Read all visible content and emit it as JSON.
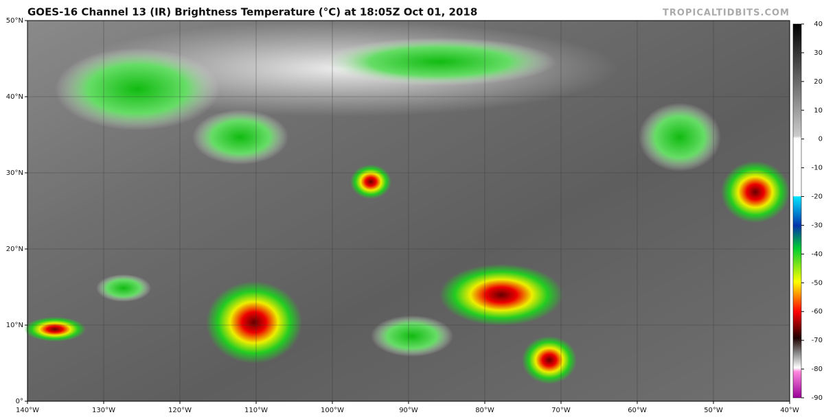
{
  "map": {
    "title": "GOES-16 Channel 13 (IR) Brightness Temperature (°C) at 18:05Z Oct 01, 2018",
    "watermark": "TROPICALTIDBITS.COM",
    "lonlim": [
      -140,
      -40
    ],
    "latlim": [
      0,
      50
    ],
    "lonticks": [
      {
        "value": -140,
        "label": "140°W"
      },
      {
        "value": -130,
        "label": "130°W"
      },
      {
        "value": -120,
        "label": "120°W"
      },
      {
        "value": -110,
        "label": "110°W"
      },
      {
        "value": -100,
        "label": "100°W"
      },
      {
        "value": -90,
        "label": "90°W"
      },
      {
        "value": -80,
        "label": "80°W"
      },
      {
        "value": -70,
        "label": "70°W"
      },
      {
        "value": -60,
        "label": "60°W"
      },
      {
        "value": -50,
        "label": "50°W"
      },
      {
        "value": -40,
        "label": "40°W"
      }
    ],
    "latticks": [
      {
        "value": 0,
        "label": "0°"
      },
      {
        "value": 10,
        "label": "10°N"
      },
      {
        "value": 20,
        "label": "20°N"
      },
      {
        "value": 30,
        "label": "30°N"
      },
      {
        "value": 40,
        "label": "40°N"
      },
      {
        "value": 50,
        "label": "50°N"
      }
    ],
    "colorbar": {
      "lim": [
        -90,
        40
      ],
      "ticks": [
        40,
        30,
        20,
        10,
        0,
        -10,
        -20,
        -30,
        -40,
        -50,
        -60,
        -70,
        -80,
        -90
      ]
    }
  }
}
